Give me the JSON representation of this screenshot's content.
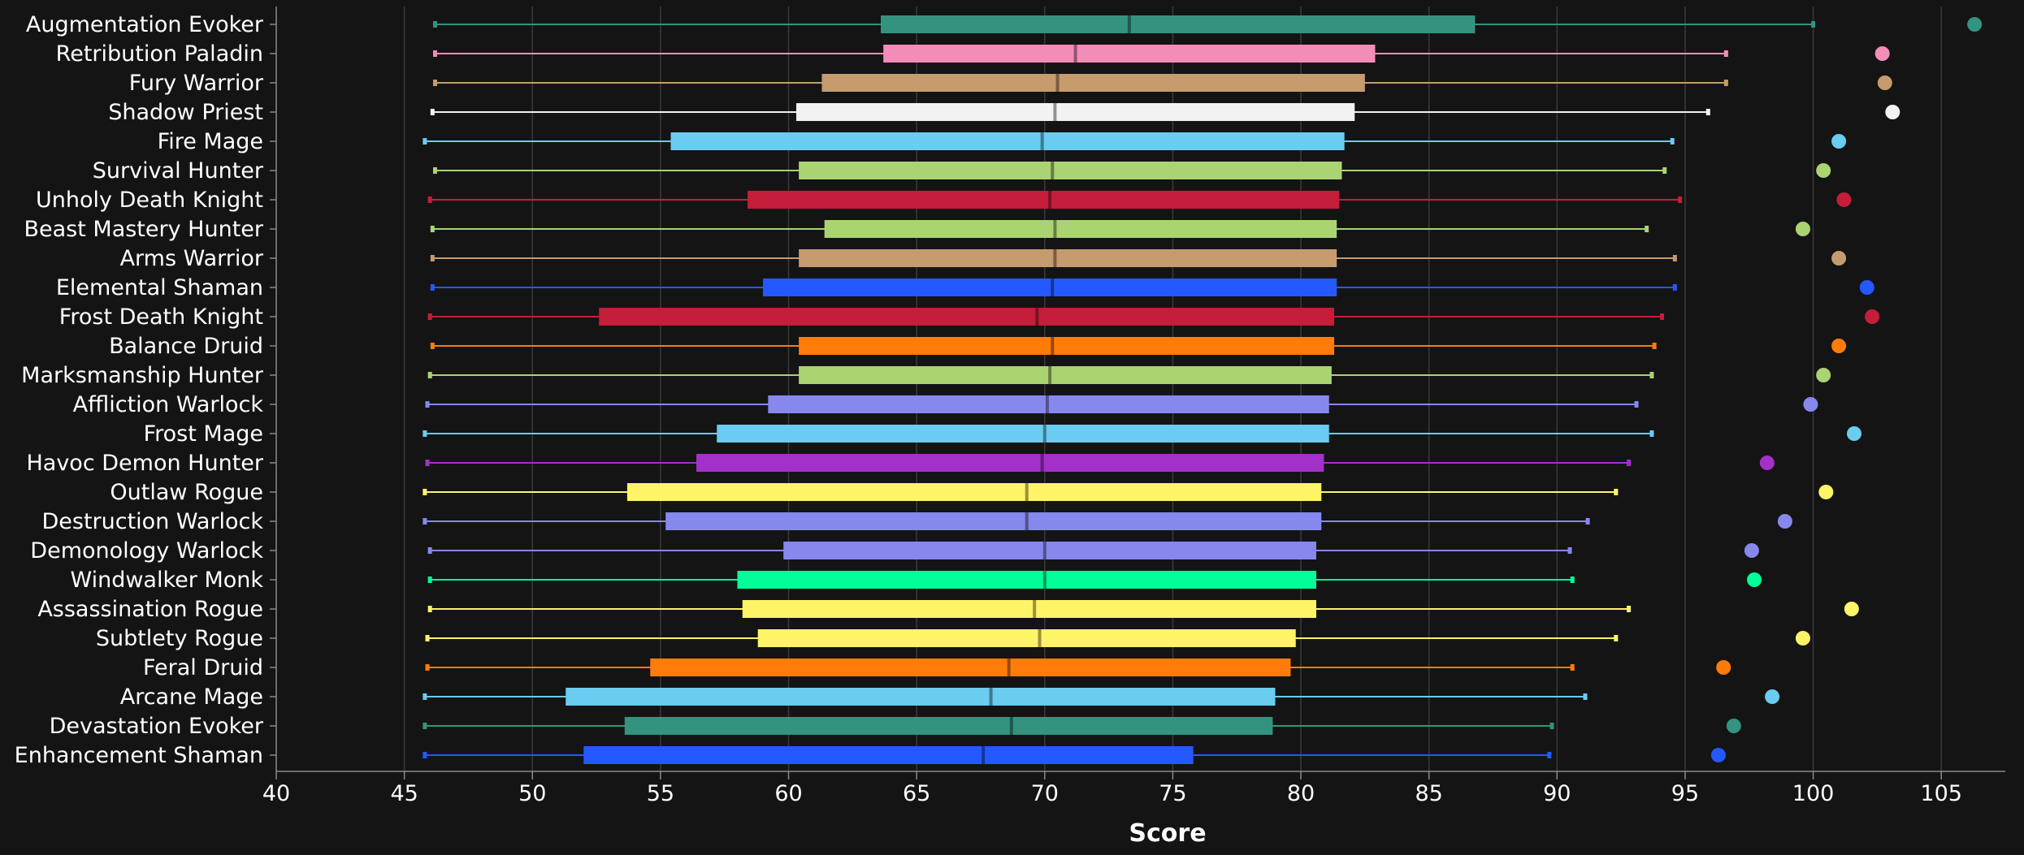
{
  "chart_data": {
    "type": "boxplot",
    "xlabel": "Score",
    "xlim": [
      40,
      107.5
    ],
    "xticks": [
      40,
      45,
      50,
      55,
      60,
      65,
      70,
      75,
      80,
      85,
      90,
      95,
      100,
      105
    ],
    "grid": "vertical",
    "series": [
      {
        "name": "Augmentation Evoker",
        "color": "#33937F",
        "min": 46.2,
        "q1": 63.6,
        "median": 73.3,
        "q3": 86.8,
        "max": 100.0,
        "outlier": 106.3
      },
      {
        "name": "Retribution Paladin",
        "color": "#F48CBA",
        "min": 46.2,
        "q1": 63.7,
        "median": 71.2,
        "q3": 82.9,
        "max": 96.6,
        "outlier": 102.7
      },
      {
        "name": "Fury Warrior",
        "color": "#C69B6D",
        "min": 46.2,
        "q1": 61.3,
        "median": 70.5,
        "q3": 82.5,
        "max": 96.6,
        "outlier": 102.8
      },
      {
        "name": "Shadow Priest",
        "color": "#F2F2F2",
        "min": 46.1,
        "q1": 60.3,
        "median": 70.4,
        "q3": 82.1,
        "max": 95.9,
        "outlier": 103.1
      },
      {
        "name": "Fire Mage",
        "color": "#69CCF0",
        "min": 45.8,
        "q1": 55.4,
        "median": 69.9,
        "q3": 81.7,
        "max": 94.5,
        "outlier": 101.0
      },
      {
        "name": "Survival Hunter",
        "color": "#AAD372",
        "min": 46.2,
        "q1": 60.4,
        "median": 70.3,
        "q3": 81.6,
        "max": 94.2,
        "outlier": 100.4
      },
      {
        "name": "Unholy Death Knight",
        "color": "#C41E3A",
        "min": 46.0,
        "q1": 58.4,
        "median": 70.2,
        "q3": 81.5,
        "max": 94.8,
        "outlier": 101.2
      },
      {
        "name": "Beast Mastery Hunter",
        "color": "#AAD372",
        "min": 46.1,
        "q1": 61.4,
        "median": 70.4,
        "q3": 81.4,
        "max": 93.5,
        "outlier": 99.6
      },
      {
        "name": "Arms Warrior",
        "color": "#C69B6D",
        "min": 46.1,
        "q1": 60.4,
        "median": 70.4,
        "q3": 81.4,
        "max": 94.6,
        "outlier": 101.0
      },
      {
        "name": "Elemental Shaman",
        "color": "#2459FF",
        "min": 46.1,
        "q1": 59.0,
        "median": 70.3,
        "q3": 81.4,
        "max": 94.6,
        "outlier": 102.1
      },
      {
        "name": "Frost Death Knight",
        "color": "#C41E3A",
        "min": 46.0,
        "q1": 52.6,
        "median": 69.7,
        "q3": 81.3,
        "max": 94.1,
        "outlier": 102.3
      },
      {
        "name": "Balance Druid",
        "color": "#FF7C0A",
        "min": 46.1,
        "q1": 60.4,
        "median": 70.3,
        "q3": 81.3,
        "max": 93.8,
        "outlier": 101.0
      },
      {
        "name": "Marksmanship Hunter",
        "color": "#AAD372",
        "min": 46.0,
        "q1": 60.4,
        "median": 70.2,
        "q3": 81.2,
        "max": 93.7,
        "outlier": 100.4
      },
      {
        "name": "Affliction Warlock",
        "color": "#8788EE",
        "min": 45.9,
        "q1": 59.2,
        "median": 70.1,
        "q3": 81.1,
        "max": 93.1,
        "outlier": 99.9
      },
      {
        "name": "Frost Mage",
        "color": "#69CCF0",
        "min": 45.8,
        "q1": 57.2,
        "median": 70.0,
        "q3": 81.1,
        "max": 93.7,
        "outlier": 101.6
      },
      {
        "name": "Havoc Demon Hunter",
        "color": "#A330C9",
        "min": 45.9,
        "q1": 56.4,
        "median": 69.9,
        "q3": 80.9,
        "max": 92.8,
        "outlier": 98.2
      },
      {
        "name": "Outlaw Rogue",
        "color": "#FFF468",
        "min": 45.8,
        "q1": 53.7,
        "median": 69.3,
        "q3": 80.8,
        "max": 92.3,
        "outlier": 100.5
      },
      {
        "name": "Destruction Warlock",
        "color": "#8788EE",
        "min": 45.8,
        "q1": 55.2,
        "median": 69.3,
        "q3": 80.8,
        "max": 91.2,
        "outlier": 98.9
      },
      {
        "name": "Demonology Warlock",
        "color": "#8788EE",
        "min": 46.0,
        "q1": 59.8,
        "median": 70.0,
        "q3": 80.6,
        "max": 90.5,
        "outlier": 97.6
      },
      {
        "name": "Windwalker Monk",
        "color": "#00FF98",
        "min": 46.0,
        "q1": 58.0,
        "median": 70.0,
        "q3": 80.6,
        "max": 90.6,
        "outlier": 97.7
      },
      {
        "name": "Assassination Rogue",
        "color": "#FFF468",
        "min": 46.0,
        "q1": 58.2,
        "median": 69.6,
        "q3": 80.6,
        "max": 92.8,
        "outlier": 101.5
      },
      {
        "name": "Subtlety Rogue",
        "color": "#FFF468",
        "min": 45.9,
        "q1": 58.8,
        "median": 69.8,
        "q3": 79.8,
        "max": 92.3,
        "outlier": 99.6
      },
      {
        "name": "Feral Druid",
        "color": "#FF7C0A",
        "min": 45.9,
        "q1": 54.6,
        "median": 68.6,
        "q3": 79.6,
        "max": 90.6,
        "outlier": 96.5
      },
      {
        "name": "Arcane Mage",
        "color": "#69CCF0",
        "min": 45.8,
        "q1": 51.3,
        "median": 67.9,
        "q3": 79.0,
        "max": 91.1,
        "outlier": 98.4
      },
      {
        "name": "Devastation Evoker",
        "color": "#33937F",
        "min": 45.8,
        "q1": 53.6,
        "median": 68.7,
        "q3": 78.9,
        "max": 89.8,
        "outlier": 96.9
      },
      {
        "name": "Enhancement Shaman",
        "color": "#2459FF",
        "min": 45.8,
        "q1": 52.0,
        "median": 67.6,
        "q3": 75.8,
        "max": 89.7,
        "outlier": 96.3
      }
    ]
  }
}
